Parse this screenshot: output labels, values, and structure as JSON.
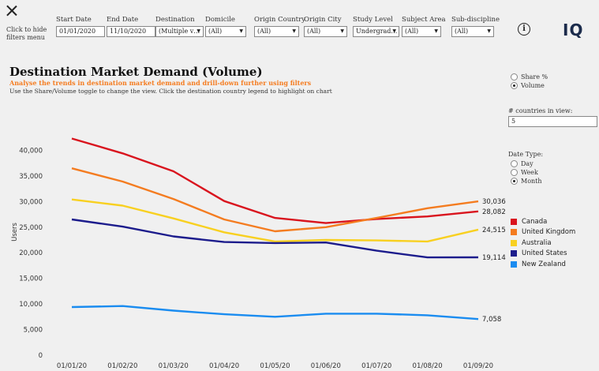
{
  "header": {
    "close_icon": "close-icon",
    "hide_filters_text": "Click to hide filters menu",
    "filters": [
      {
        "id": "start-date",
        "label": "Start Date",
        "value": "01/01/2020",
        "dropdown": false
      },
      {
        "id": "end-date",
        "label": "End Date",
        "value": "11/10/2020",
        "dropdown": false
      },
      {
        "id": "destination",
        "label": "Destination",
        "value": "(Multiple v…",
        "dropdown": true
      },
      {
        "id": "domicile",
        "label": "Domicile",
        "value": "(All)",
        "dropdown": true
      },
      {
        "id": "origin-country",
        "label": "Origin Country",
        "value": "(All)",
        "dropdown": true
      },
      {
        "id": "origin-city",
        "label": "Origin City",
        "value": "(All)",
        "dropdown": true
      },
      {
        "id": "study-level",
        "label": "Study Level",
        "value": "Undergrad…",
        "dropdown": true
      },
      {
        "id": "subject-area",
        "label": "Subject Area",
        "value": "(All)",
        "dropdown": true
      },
      {
        "id": "sub-discipline",
        "label": "Sub-discipline",
        "value": "(All)",
        "dropdown": true
      }
    ],
    "info_icon": "i",
    "logo": "IQ"
  },
  "page": {
    "title": "Destination Market Demand (Volume)",
    "subtitle": "Analyse the trends in destination market demand and drill-down further using filters",
    "instructions": "Use the Share/Volume toggle to change the view. Click the destination country legend to highlight on chart"
  },
  "controls": {
    "view_toggle": [
      {
        "label": "Share %",
        "selected": false
      },
      {
        "label": "Volume",
        "selected": true
      }
    ],
    "countries_label": "# countries in view:",
    "countries_value": "5",
    "date_type_label": "Date Type:",
    "date_type_options": [
      {
        "label": "Day",
        "selected": false
      },
      {
        "label": "Week",
        "selected": false
      },
      {
        "label": "Month",
        "selected": true
      }
    ]
  },
  "chart_data": {
    "type": "line",
    "title": "Destination Market Demand (Volume)",
    "ylabel": "Users",
    "xlabel": "",
    "ylim": [
      0,
      45000
    ],
    "yticks": [
      0,
      5000,
      10000,
      15000,
      20000,
      25000,
      30000,
      35000,
      40000
    ],
    "ytick_labels": [
      "0",
      "5,000",
      "10,000",
      "15,000",
      "20,000",
      "25,000",
      "30,000",
      "35,000",
      "40,000"
    ],
    "categories": [
      "01/01/20",
      "01/02/20",
      "01/03/20",
      "01/04/20",
      "01/05/20",
      "01/06/20",
      "01/07/20",
      "01/08/20",
      "01/09/20"
    ],
    "grid": false,
    "legend_position": "right",
    "series": [
      {
        "name": "Canada",
        "color": "#d9141e",
        "values": [
          42300,
          39400,
          35900,
          30100,
          26800,
          25800,
          26600,
          27100,
          28082
        ],
        "end_label": "28,082"
      },
      {
        "name": "United Kingdom",
        "color": "#f47c20",
        "values": [
          36500,
          33900,
          30500,
          26500,
          24200,
          25000,
          26800,
          28700,
          30036
        ],
        "end_label": "30,036"
      },
      {
        "name": "Australia",
        "color": "#f8d020",
        "values": [
          30400,
          29200,
          26700,
          24000,
          22200,
          22500,
          22400,
          22200,
          24515
        ],
        "end_label": "24,515"
      },
      {
        "name": "United States",
        "color": "#1c1c8c",
        "values": [
          26500,
          25100,
          23200,
          22100,
          21900,
          22000,
          20400,
          19100,
          19114
        ],
        "end_label": "19,114"
      },
      {
        "name": "New Zealand",
        "color": "#1a8cf0",
        "values": [
          9400,
          9600,
          8700,
          8000,
          7500,
          8100,
          8100,
          7800,
          7058
        ],
        "end_label": "7,058"
      }
    ]
  }
}
